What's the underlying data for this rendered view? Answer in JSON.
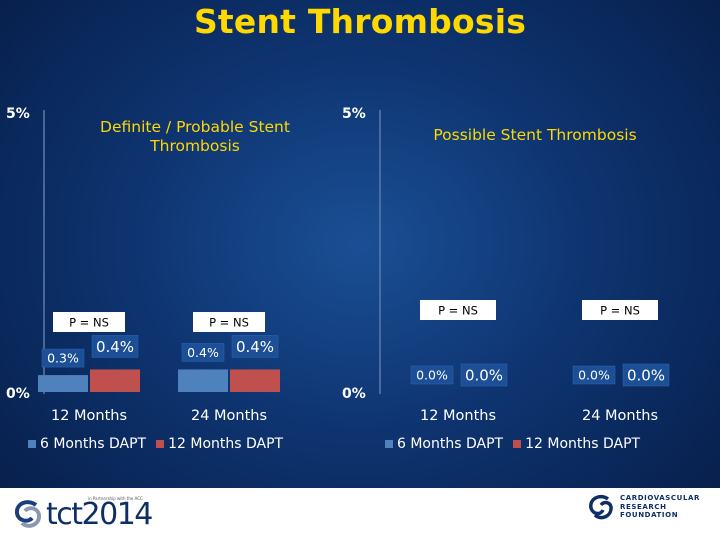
{
  "title": "Stent Thrombosis",
  "legend_labels": [
    "6 Months DAPT",
    "12 Months DAPT"
  ],
  "colors": {
    "series_6m": "#4f81bd",
    "series_12m": "#c0504d",
    "title_yellow": "#ffd800"
  },
  "chart_data": [
    {
      "type": "bar",
      "title": "Definite / Probable Stent Thrombosis",
      "categories": [
        "12 Months",
        "24 Months"
      ],
      "series": [
        {
          "name": "6 Months DAPT",
          "values": [
            0.3,
            0.4
          ],
          "labels": [
            "0.3%",
            "0.4%"
          ]
        },
        {
          "name": "12 Months DAPT",
          "values": [
            0.4,
            0.4
          ],
          "labels": [
            "0.4%",
            "0.4%"
          ]
        }
      ],
      "p_values": [
        "P = NS",
        "P = NS"
      ],
      "ylim": [
        0,
        5
      ],
      "y_tick_labels": [
        "0%",
        "5%"
      ],
      "xlabel": "",
      "ylabel": ""
    },
    {
      "type": "bar",
      "title": "Possible Stent Thrombosis",
      "categories": [
        "12 Months",
        "24 Months"
      ],
      "series": [
        {
          "name": "6 Months DAPT",
          "values": [
            0.0,
            0.0
          ],
          "labels": [
            "0.0%",
            "0.0%"
          ]
        },
        {
          "name": "12 Months DAPT",
          "values": [
            0.0,
            0.0
          ],
          "labels": [
            "0.0%",
            "0.0%"
          ]
        }
      ],
      "p_values": [
        "P = NS",
        "P = NS"
      ],
      "ylim": [
        0,
        5
      ],
      "y_tick_labels": [
        "0%",
        "5%"
      ],
      "xlabel": "",
      "ylabel": ""
    }
  ],
  "footer": {
    "left_logo_text": "tct2014",
    "left_logo_subtext": "in Partnership with the ACC",
    "right_logo_text": [
      "CARDIOVASCULAR",
      "RESEARCH",
      "FOUNDATION"
    ]
  }
}
